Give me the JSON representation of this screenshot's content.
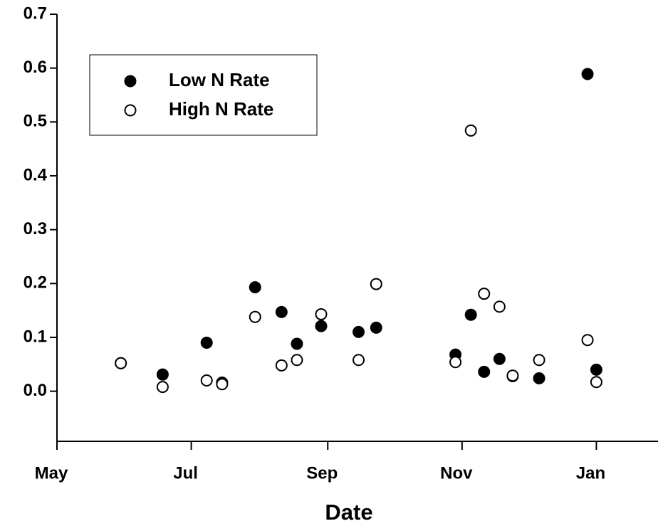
{
  "chart_data": {
    "type": "scatter",
    "xlabel": "Date",
    "x": [
      29,
      48,
      68,
      75,
      90,
      102,
      109,
      120,
      137,
      145,
      181,
      188,
      194,
      201,
      207,
      219,
      241,
      245
    ],
    "series": [
      {
        "name": "Low N Rate",
        "color": "#000000",
        "filled": true,
        "values": [
          0.052,
          0.031,
          0.09,
          0.016,
          0.193,
          0.147,
          0.088,
          0.121,
          0.11,
          0.118,
          0.068,
          0.142,
          0.036,
          0.06,
          0.028,
          0.024,
          0.589,
          0.04
        ]
      },
      {
        "name": "High N Rate",
        "color": "#000000",
        "filled": false,
        "values": [
          0.052,
          0.008,
          0.02,
          0.013,
          0.138,
          0.048,
          0.058,
          0.143,
          0.058,
          0.199,
          0.054,
          0.484,
          0.181,
          0.157,
          0.029,
          0.058,
          0.095,
          0.017
        ]
      }
    ],
    "xlim": [
      0,
      273
    ],
    "xticks": [
      {
        "value": 0,
        "label": "May"
      },
      {
        "value": 61,
        "label": "Jul"
      },
      {
        "value": 123,
        "label": "Sep"
      },
      {
        "value": 184,
        "label": "Nov"
      },
      {
        "value": 245,
        "label": "Jan"
      }
    ],
    "ylim": [
      -0.093,
      0.7
    ],
    "yticks": [
      {
        "value": 0,
        "label": "0.0"
      },
      0.1,
      0.2,
      0.3,
      0.4,
      0.5,
      0.6,
      0.7
    ],
    "legend": "upper left"
  }
}
